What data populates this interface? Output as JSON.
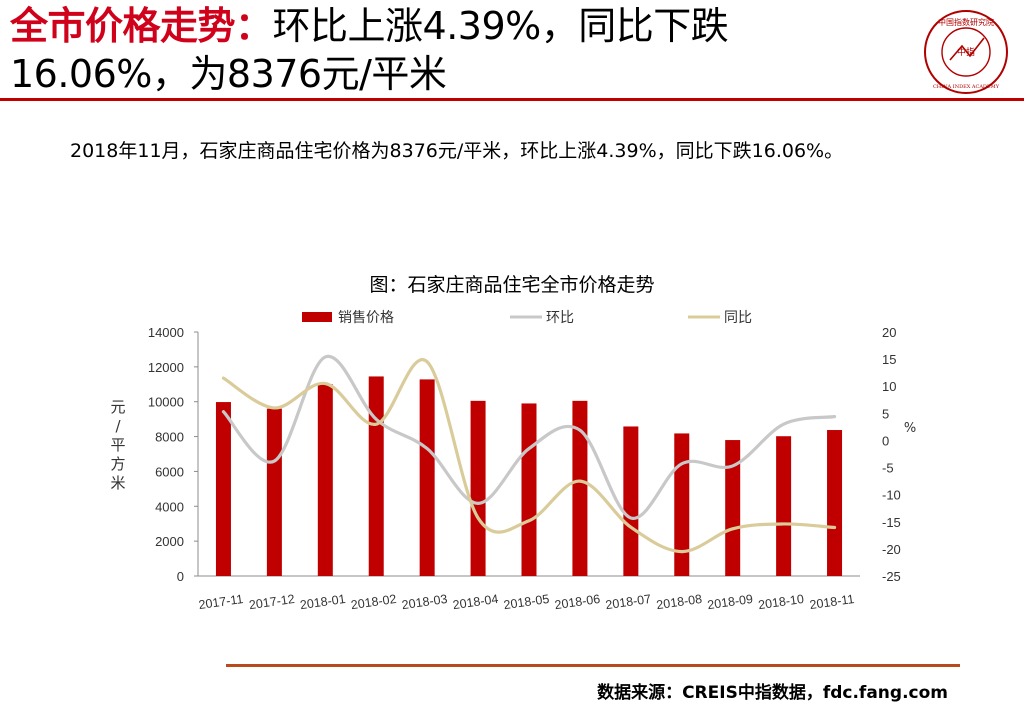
{
  "header": {
    "title_highlight": "全市价格走势：",
    "title_line1_rest": "环比上涨4.39%，同比下跌",
    "title_line2": "16.06%，为8376元/平米",
    "logo_text_top": "中国指数研究院",
    "logo_text_center": "中指",
    "logo_text_bottom": "CHINA INDEX ACADEMY"
  },
  "summary": {
    "text": "2018年11月，石家庄商品住宅价格为8376元/平米，环比上涨4.39%，同比下跌16.06%。"
  },
  "chart_title": "图：石家庄商品住宅全市价格走势",
  "source": "数据来源：CREIS中指数据，fdc.fang.com",
  "colors": {
    "accent": "#d0021b",
    "bar": "#c00000",
    "mom_line": "#c8c8c8",
    "yoy_line": "#d9cc9a",
    "rule": "#b84a1e"
  },
  "chart_data": {
    "type": "bar",
    "categories": [
      "2017-11",
      "2017-12",
      "2018-01",
      "2018-02",
      "2018-03",
      "2018-04",
      "2018-05",
      "2018-06",
      "2018-07",
      "2018-08",
      "2018-09",
      "2018-10",
      "2018-11"
    ],
    "series": [
      {
        "name": "销售价格",
        "type": "bar",
        "axis": "left",
        "values": [
          9980,
          9600,
          11000,
          11450,
          11280,
          10050,
          9900,
          10050,
          8580,
          8180,
          7800,
          8020,
          8376
        ]
      },
      {
        "name": "环比",
        "type": "line",
        "axis": "right",
        "values": [
          5.3,
          -3.8,
          15.4,
          3.9,
          -1.5,
          -11.6,
          -1.5,
          1.9,
          -14.3,
          -4.3,
          -4.7,
          3.0,
          4.39
        ]
      },
      {
        "name": "同比",
        "type": "line",
        "axis": "right",
        "values": [
          11.5,
          6.0,
          10.5,
          3.0,
          14.5,
          -14.3,
          -14.8,
          -7.5,
          -16.0,
          -20.5,
          -16.3,
          -15.4,
          -16.06
        ]
      }
    ],
    "ylabel_left": "元/平方米",
    "ylabel_right": "%",
    "ylim_left": [
      0,
      14000
    ],
    "yticks_left": [
      0,
      2000,
      4000,
      6000,
      8000,
      10000,
      12000,
      14000
    ],
    "ylim_right": [
      -25,
      20
    ],
    "yticks_right": [
      -25,
      -20,
      -15,
      -10,
      -5,
      0,
      5,
      10,
      15,
      20
    ],
    "legend_position": "top",
    "grid": false
  }
}
